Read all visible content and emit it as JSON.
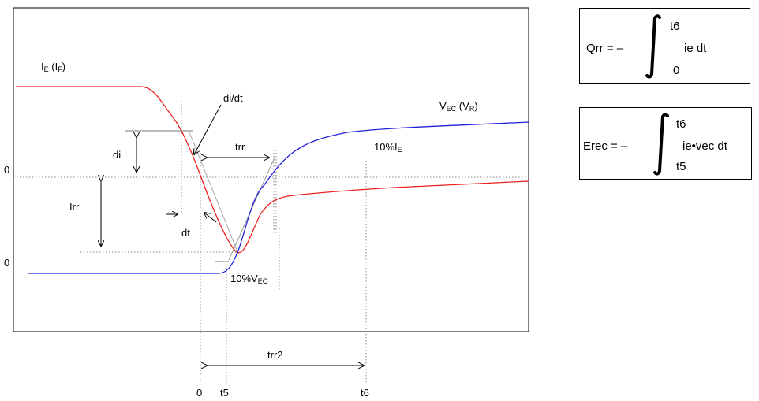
{
  "labels": {
    "ie_main": "I",
    "ie_sub": "E",
    "if_open": " (I",
    "if_sub": "F",
    "if_close": ")",
    "vec_main": "V",
    "vec_sub": "EC",
    "vr_open": " (V",
    "vr_sub": "R",
    "vr_close": ")",
    "didt": "di/dt",
    "di": "di",
    "dt": "dt",
    "trr": "trr",
    "irr": "Irr",
    "pct_ie_main": "10%I",
    "pct_ie_sub": "E",
    "pct_vec_main": "10%V",
    "pct_vec_sub": "EC",
    "trr2": "trr2",
    "zero_upper": "0",
    "zero_lower": "0",
    "x_zero": "0",
    "x_t5": "t5",
    "x_t6": "t6"
  },
  "formulas": {
    "qrr": {
      "lhs": "Qrr = –",
      "upper": "t6",
      "lower": "0",
      "integrand": "ie dt"
    },
    "erec": {
      "lhs": "Erec = –",
      "upper": "t6",
      "lower": "t5",
      "integrand": "ie•vec dt"
    }
  },
  "colors": {
    "current": "#ee2020",
    "voltage": "#2020dd",
    "frame": "#000000",
    "guides": "#666666"
  }
}
